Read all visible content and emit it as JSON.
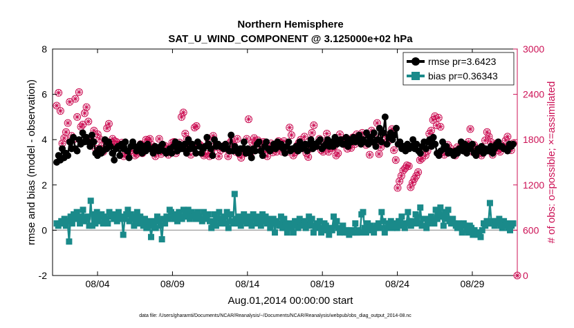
{
  "chart_data": {
    "type": "line",
    "title": "Northern Hemisphere",
    "subtitle": "SAT_U_WIND_COMPONENT @ 3.125000e+02 hPa",
    "xlabel": "Aug.01,2014 00:00:00 start",
    "ylabel": "rmse and bias (model - observation)",
    "ylabel_right": "# of obs: o=possible; ×=assimilated",
    "footnote": "data file: /Users/gharamti/Documents/NCAR/Reanalysis/~/Documents/NCAR/Reanalysis/webpub/obs_diag_output_2014-08.nc",
    "x_start_day": 0,
    "x_end_day": 31,
    "xticks": [
      {
        "day": 3,
        "label": "08/04"
      },
      {
        "day": 8,
        "label": "08/09"
      },
      {
        "day": 13,
        "label": "08/14"
      },
      {
        "day": 18,
        "label": "08/19"
      },
      {
        "day": 23,
        "label": "08/24"
      },
      {
        "day": 28,
        "label": "08/29"
      }
    ],
    "ylim": [
      -2,
      8
    ],
    "yticks": [
      -2,
      0,
      2,
      4,
      6,
      8
    ],
    "ylim_right": [
      0,
      3000
    ],
    "yticks_right": [
      0,
      600,
      1200,
      1800,
      2400,
      3000
    ],
    "zero_line": 0,
    "legend_position": "top-right",
    "colors": {
      "rmse": "#000000",
      "bias": "#1a8a8a",
      "obs": "#cc1155",
      "zero": "#aaaaaa"
    },
    "series": [
      {
        "name": "rmse pr=3.6423",
        "values": [
          3.0,
          3.3,
          3.1,
          3.6,
          3.2,
          3.4,
          3.3,
          3.9,
          3.6,
          4.1,
          3.6,
          3.5,
          4.0,
          3.8,
          4.3,
          3.9,
          4.1,
          3.9,
          3.7,
          4.2,
          3.9,
          3.4,
          3.3,
          3.6,
          3.4,
          3.5,
          4.0,
          3.6,
          3.9,
          3.7,
          3.4,
          3.1,
          3.6,
          3.7,
          3.3,
          3.8,
          3.6,
          3.9,
          3.5,
          3.2,
          3.7,
          3.9,
          3.7,
          3.5,
          3.6,
          3.8,
          3.4,
          3.7,
          3.5,
          3.8,
          3.6,
          3.6,
          3.4,
          3.7,
          3.6,
          3.5,
          3.7,
          3.8,
          3.5,
          3.4,
          3.5,
          3.6,
          3.4,
          3.7,
          3.9,
          3.5,
          3.8,
          3.6,
          3.6,
          3.8,
          3.4,
          4.0,
          3.6,
          3.8,
          3.6,
          3.4,
          3.9,
          3.7,
          3.4,
          3.6,
          3.7,
          4.1,
          3.8,
          3.6,
          3.3,
          4.0,
          3.7,
          3.8,
          3.7,
          3.7,
          3.6,
          3.8,
          3.6,
          3.5,
          4.2,
          3.5,
          3.7,
          3.5,
          3.4,
          3.6,
          3.6,
          3.9,
          3.4,
          3.6,
          3.4,
          3.2,
          3.6,
          3.5,
          3.8,
          3.9,
          3.5,
          3.3,
          3.7,
          3.9,
          3.6,
          3.5,
          3.6,
          3.8,
          3.6,
          3.9,
          3.7,
          3.8,
          3.6,
          3.4,
          3.7,
          3.9,
          3.5,
          3.6,
          3.6,
          3.7,
          3.5,
          3.9,
          3.6,
          3.7,
          3.8,
          3.5,
          3.8,
          4.0,
          3.6,
          3.8,
          3.7,
          3.9,
          4.0,
          3.6,
          3.7,
          3.8,
          4.0,
          3.7,
          3.9,
          3.7,
          4.1,
          3.8,
          3.9,
          4.0,
          3.8,
          3.8,
          4.1,
          3.7,
          4.0,
          3.9,
          4.1,
          3.9,
          4.0,
          4.2,
          3.8,
          4.0,
          3.9,
          4.3,
          3.8,
          4.1,
          3.9,
          4.3,
          3.7,
          4.0,
          4.5,
          3.9,
          4.3,
          5.0,
          3.8,
          4.1,
          4.3,
          4.0,
          4.2,
          4.5,
          3.8,
          3.9,
          3.6,
          3.7,
          3.5,
          3.8,
          3.6,
          3.7,
          4.0,
          3.6,
          3.8,
          3.5,
          3.4,
          3.7,
          3.9,
          3.6,
          3.9,
          4.0,
          3.7,
          4.1,
          3.8,
          3.4,
          3.3,
          3.5,
          3.9,
          3.6,
          3.7,
          3.4,
          3.5,
          3.4,
          3.3,
          3.5,
          3.4,
          3.6,
          3.9,
          3.5,
          3.8,
          3.4,
          3.7,
          3.6,
          3.8,
          3.4,
          3.3,
          3.6,
          3.5,
          3.7,
          3.4,
          3.6,
          3.5,
          3.5,
          3.7,
          3.4,
          3.6,
          3.8,
          3.9,
          3.7,
          3.7,
          3.6,
          3.6,
          3.5,
          3.8,
          3.7,
          3.8
        ]
      },
      {
        "name": "bias pr=0.36343",
        "values": [
          0.3,
          0.2,
          0.3,
          0.4,
          0.3,
          0.5,
          0.2,
          0.4,
          -0.5,
          0.6,
          0.3,
          0.7,
          0.5,
          0.8,
          0.5,
          0.3,
          0.6,
          0.9,
          0.4,
          0.5,
          0.6,
          0.2,
          1.3,
          0.2,
          0.7,
          0.3,
          0.8,
          0.4,
          0.6,
          0.7,
          0.3,
          0.6,
          0.5,
          0.3,
          0.8,
          0.6,
          0.7,
          0.5,
          0.6,
          0.4,
          0.8,
          0.5,
          0.6,
          -0.2,
          0.5,
          0.7,
          0.9,
          0.4,
          0.7,
          0.6,
          0.2,
          0.5,
          0.8,
          0.3,
          0.6,
          0.3,
          0.2,
          0.5,
          0.1,
          0.4,
          0.3,
          -0.3,
          0.2,
          0.4,
          0.1,
          0.6,
          0.4,
          0.2,
          -0.4,
          0.5,
          0.3,
          0.6,
          0.5,
          0.9,
          0.8,
          0.6,
          0.5,
          0.7,
          0.4,
          0.8,
          0.6,
          0.5,
          0.9,
          0.7,
          0.6,
          0.9,
          0.5,
          0.8,
          0.6,
          0.7,
          0.5,
          0.8,
          0.6,
          0.5,
          0.4,
          0.8,
          0.6,
          0.5,
          0.7,
          0.4,
          0.1,
          0.3,
          0.7,
          0.2,
          0.5,
          0.8,
          0.3,
          0.5,
          0.6,
          0.3,
          0.8,
          0.1,
          0.7,
          0.4,
          0.3,
          1.6,
          0.5,
          0.3,
          0.6,
          0.2,
          0.4,
          0.7,
          0.5,
          0.3,
          0.6,
          0.4,
          0.2,
          0.7,
          0.5,
          0.3,
          0.6,
          0.5,
          0.2,
          0.7,
          0.4,
          0.6,
          0.3,
          0.5,
          0.1,
          0.3,
          0.5,
          -0.1,
          0.4,
          0.3,
          0.2,
          0.6,
          0.1,
          0.5,
          0.3,
          -0.1,
          0.1,
          0.3,
          0.2,
          -0.1,
          0.4,
          0.3,
          0.1,
          0.5,
          0.3,
          0.2,
          0.4,
          0.1,
          0.3,
          0.6,
          0.2,
          0.5,
          -0.1,
          0.2,
          0.3,
          0.1,
          0.4,
          -0.1,
          0.1,
          0.3,
          0.2,
          0.0,
          -0.2,
          0.1,
          0.0,
          0.6,
          0.2,
          0.4,
          0.1,
          -0.1,
          0.1,
          0.2,
          -0.1,
          0.0,
          -0.1,
          -0.2,
          0.0,
          -0.1,
          -0.1,
          0.3,
          -0.1,
          0.0,
          -0.1,
          0.7,
          0.8,
          0.1,
          -0.1,
          0.3,
          0.1,
          0.2,
          0.0,
          -0.1,
          0.1,
          0.2,
          0.3,
          0.1,
          0.8,
          0.4,
          -0.1,
          0.1,
          0.3,
          0.2,
          0.4,
          0.1,
          0.2,
          0.3,
          0.1,
          0.4,
          0.2,
          0.6,
          0.3,
          0.1,
          0.3,
          0.8,
          0.4,
          0.2,
          0.4,
          0.3,
          0.7,
          0.5,
          0.3,
          1.0,
          0.2,
          0.5,
          0.5,
          0.1,
          0.3,
          0.5,
          0.6,
          0.4,
          0.3,
          0.9,
          0.5,
          0.7,
          1.0,
          0.6,
          0.2,
          0.8,
          0.5,
          0.9,
          0.4,
          0.3,
          0.5,
          0.3,
          0.2,
          0.1,
          0.3,
          0.2,
          -0.1,
          0.3,
          0.2,
          0.0,
          -0.1,
          0.2,
          0.1,
          -0.2,
          0.0,
          -0.1,
          -0.2,
          -0.1,
          -0.3,
          0.0,
          0.3,
          0.2,
          0.4,
          0.3,
          1.2,
          0.3,
          0.4,
          0.2,
          0.4,
          0.3,
          0.5,
          0.2,
          0.1,
          0.4,
          0.2,
          0.3,
          0.1,
          0.0,
          0.2,
          0.3
        ]
      },
      {
        "name": "# of obs possible/assimilated",
        "values": [
          2250,
          2420,
          2180,
          1750,
          1820,
          1900,
          2020,
          2300,
          1850,
          1800,
          2340,
          2100,
          2430,
          1970,
          2000,
          2150,
          2230,
          2040,
          1760,
          1780,
          1920,
          1680,
          1870,
          1810,
          1710,
          1640,
          1790,
          1950,
          2010,
          1730,
          1810,
          1780,
          1770,
          1730,
          1720,
          1760,
          1580,
          1620,
          1590,
          1640,
          1660,
          1720,
          1590,
          1610,
          1690,
          1740,
          1620,
          1670,
          1800,
          1790,
          1810,
          1730,
          1640,
          1580,
          1660,
          1810,
          1610,
          1720,
          1720,
          1670,
          1600,
          1700,
          1760,
          1770,
          1620,
          1690,
          1760,
          2100,
          2160,
          1880,
          1810,
          1730,
          1600,
          1720,
          1960,
          1980,
          1750,
          1730,
          1700,
          1590,
          1610,
          1820,
          1580,
          1640,
          1850,
          1720,
          1700,
          1580,
          1660,
          1700,
          1720,
          1680,
          1580,
          1760,
          1790,
          1730,
          1640,
          1810,
          1610,
          1560,
          1650,
          1620,
          1810,
          2070,
          1620,
          1760,
          1820,
          1760,
          1790,
          1700,
          1750,
          1770,
          1640,
          1580,
          1710,
          1750,
          1630,
          1700,
          1640,
          1780,
          1760,
          1640,
          1780,
          1700,
          1640,
          1960,
          1860,
          1590,
          1630,
          1720,
          1760,
          1800,
          1690,
          1840,
          1620,
          1570,
          1680,
          1890,
          1990,
          1710,
          1720,
          1810,
          1660,
          1640,
          1780,
          1880,
          1640,
          1690,
          1690,
          1710,
          1590,
          1620,
          1870,
          1780,
          1740,
          1810,
          1680,
          1720,
          1690,
          1830,
          1740,
          1870,
          1780,
          1760,
          1890,
          1820,
          1730,
          1780,
          1600,
          1920,
          1850,
          1750,
          2020,
          1610,
          1700,
          1880,
          1760,
          1860,
          1780,
          1830,
          1940,
          1660,
          1530,
          1160,
          1250,
          1320,
          1390,
          1420,
          1460,
          1450,
          1170,
          1230,
          1280,
          1320,
          1370,
          1530,
          1550,
          1680,
          1590,
          1650,
          1880,
          1920,
          2060,
          2110,
          1990,
          2090,
          1970,
          1640,
          1600,
          1690,
          1730,
          1690,
          1630,
          1640,
          1590,
          1700,
          1670,
          1700,
          1720,
          1650,
          1660,
          1770,
          1940,
          1640,
          1730,
          1690,
          1660,
          1620,
          1590,
          1680,
          1790,
          1900,
          1840,
          1770,
          1600,
          1700,
          1750,
          1660,
          1640,
          1720,
          1700,
          1790,
          1840,
          1720,
          1660,
          1750
        ]
      }
    ]
  }
}
